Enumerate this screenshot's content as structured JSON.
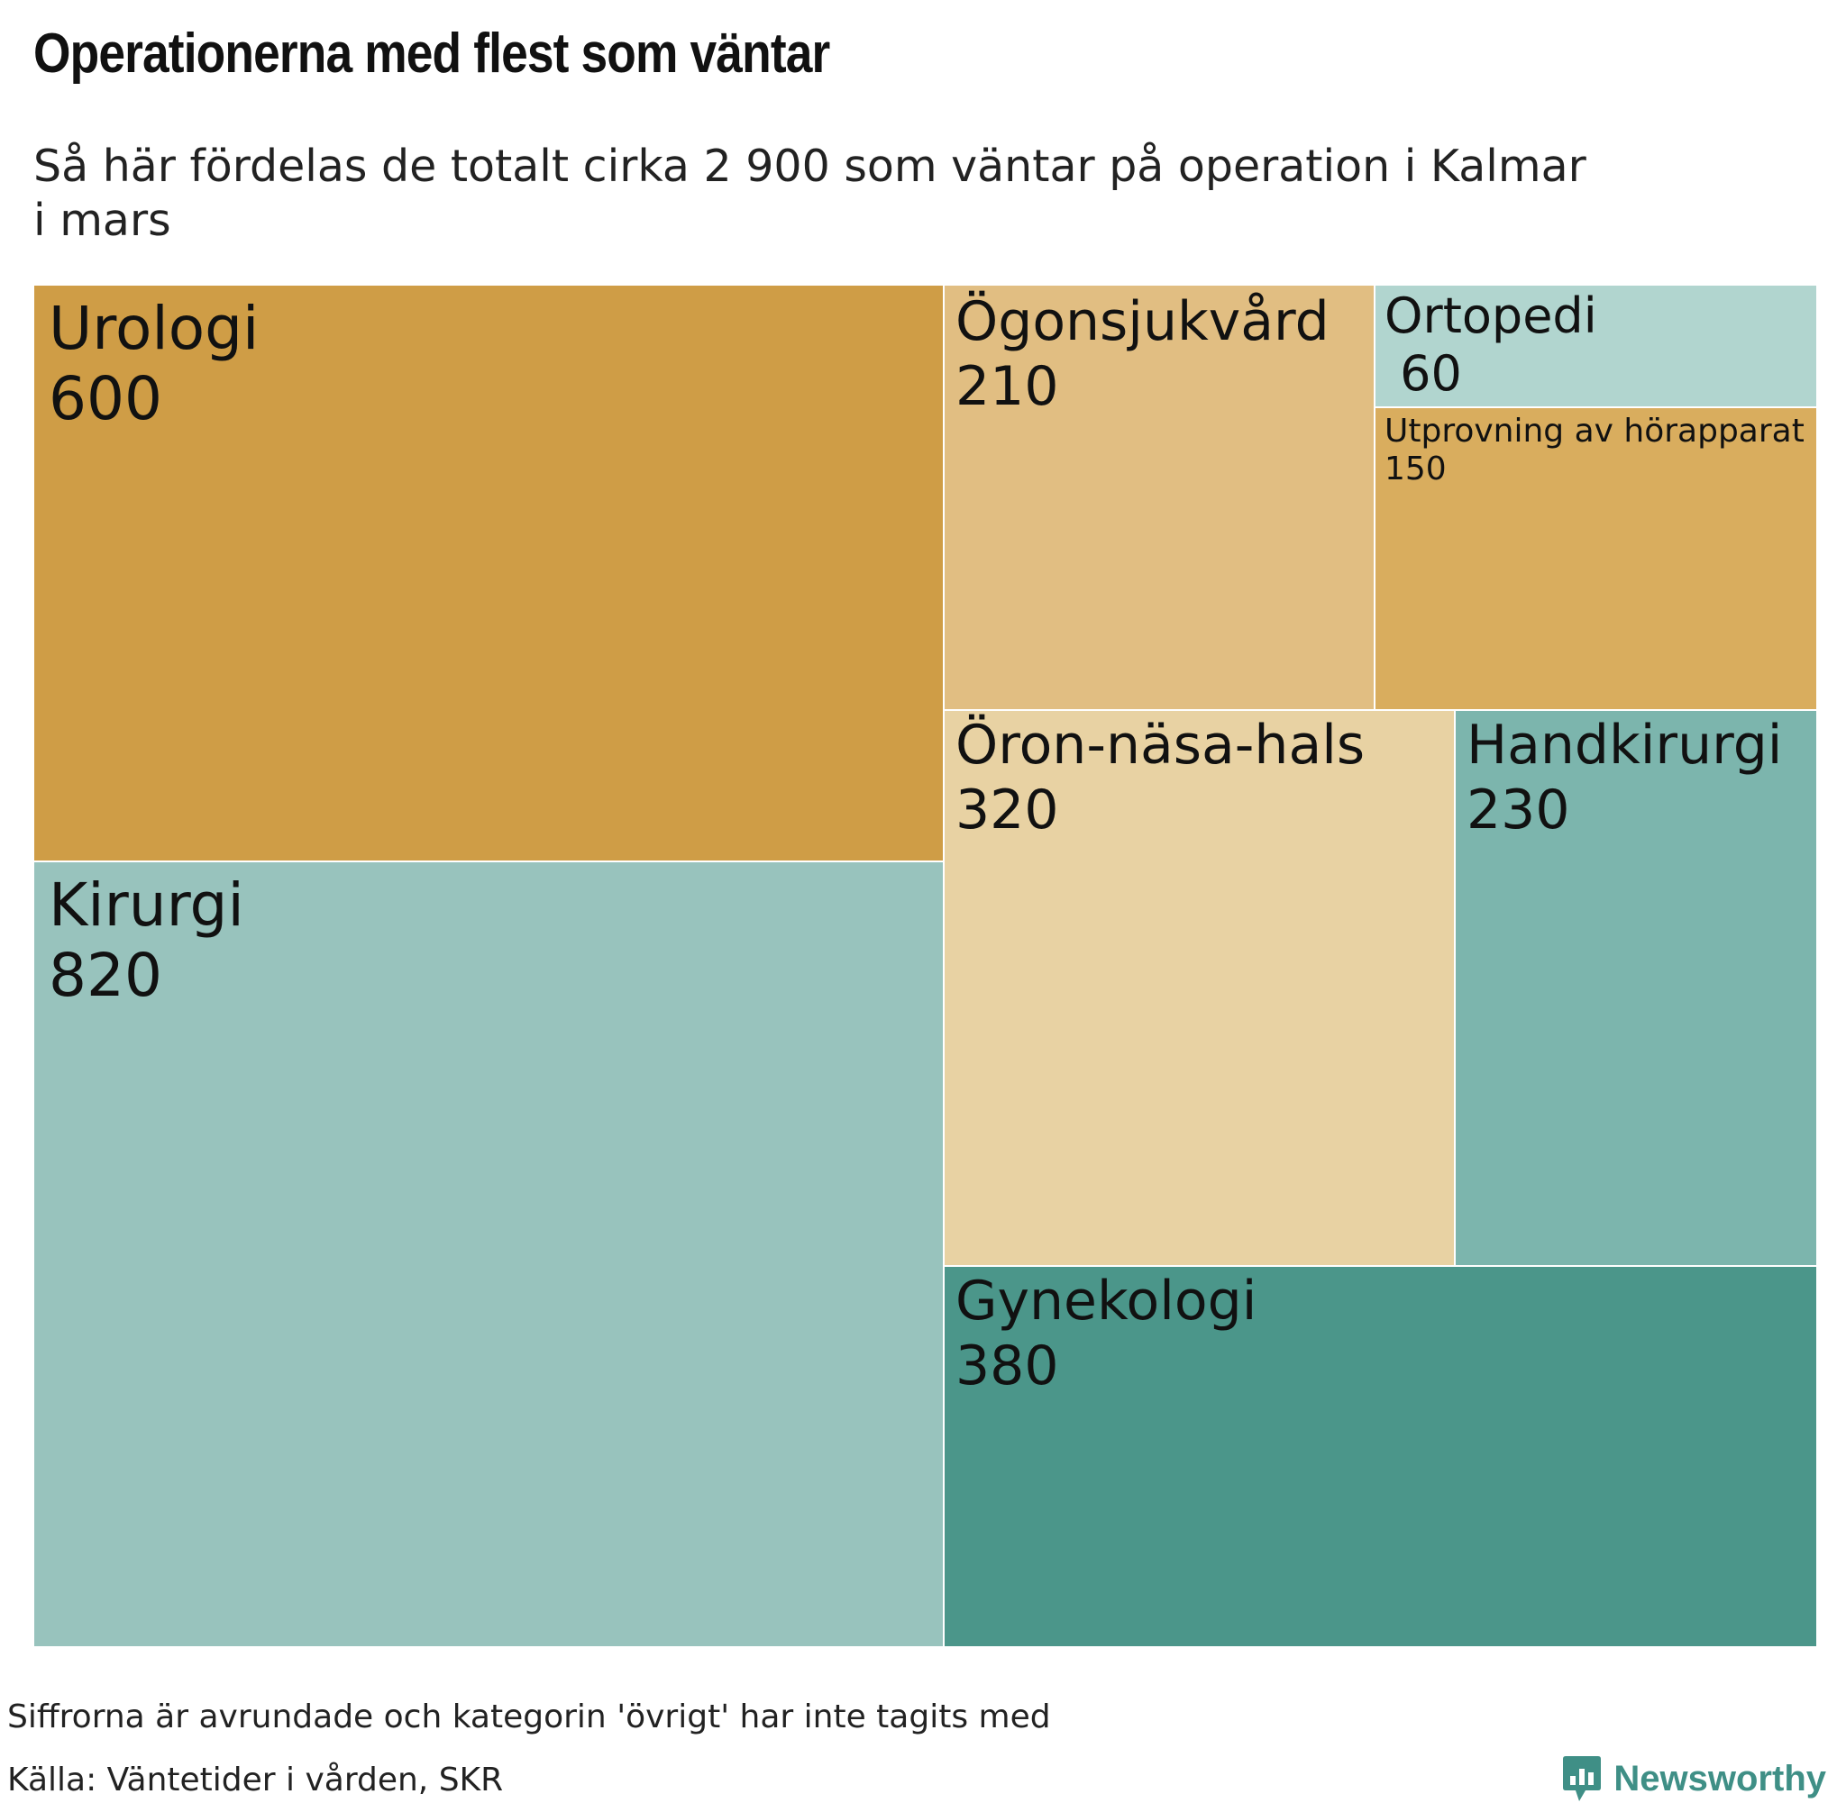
{
  "title": "Operationerna med flest som väntar",
  "subtitle_lines": [
    "Så här fördelas de totalt cirka 2 900 som väntar på operation i Kalmar",
    "i mars"
  ],
  "chart_data": {
    "type": "treemap",
    "title": "Operationerna med flest som väntar",
    "subtitle": "Så här fördelas de totalt cirka 2 900 som väntar på operation i Kalmar i mars",
    "items": [
      {
        "label": "Urologi",
        "value": 600,
        "value_text": "600",
        "color": "#cf9d46"
      },
      {
        "label": "Kirurgi",
        "value": 820,
        "value_text": "820",
        "color": "#98c3bd"
      },
      {
        "label": "Ögonsjukvård",
        "value": 210,
        "value_text": "210",
        "color": "#e1be82"
      },
      {
        "label": "Ortopedi",
        "value": 60,
        "value_text": " 60",
        "color": "#b1d5cf"
      },
      {
        "label": "Utprovning av hörapparat",
        "value": 150,
        "value_text": "150",
        "color": "#d9ad5e"
      },
      {
        "label": "Öron-näsa-hals",
        "value": 320,
        "value_text": "320",
        "color": "#e8d2a3"
      },
      {
        "label": "Handkirurgi",
        "value": 230,
        "value_text": "230",
        "color": "#7cb5ad"
      },
      {
        "label": "Gynekologi",
        "value": 380,
        "value_text": "380",
        "color": "#4b968a"
      }
    ]
  },
  "footnote": "Siffrorna är avrundade och kategorin 'övrigt' har inte tagits med",
  "source": "Källa: Väntetider i vården, SKR",
  "brand": {
    "name": "Newsworthy",
    "icon": "bar-chart-speech-bubble-icon",
    "color": "#3f8f86"
  }
}
